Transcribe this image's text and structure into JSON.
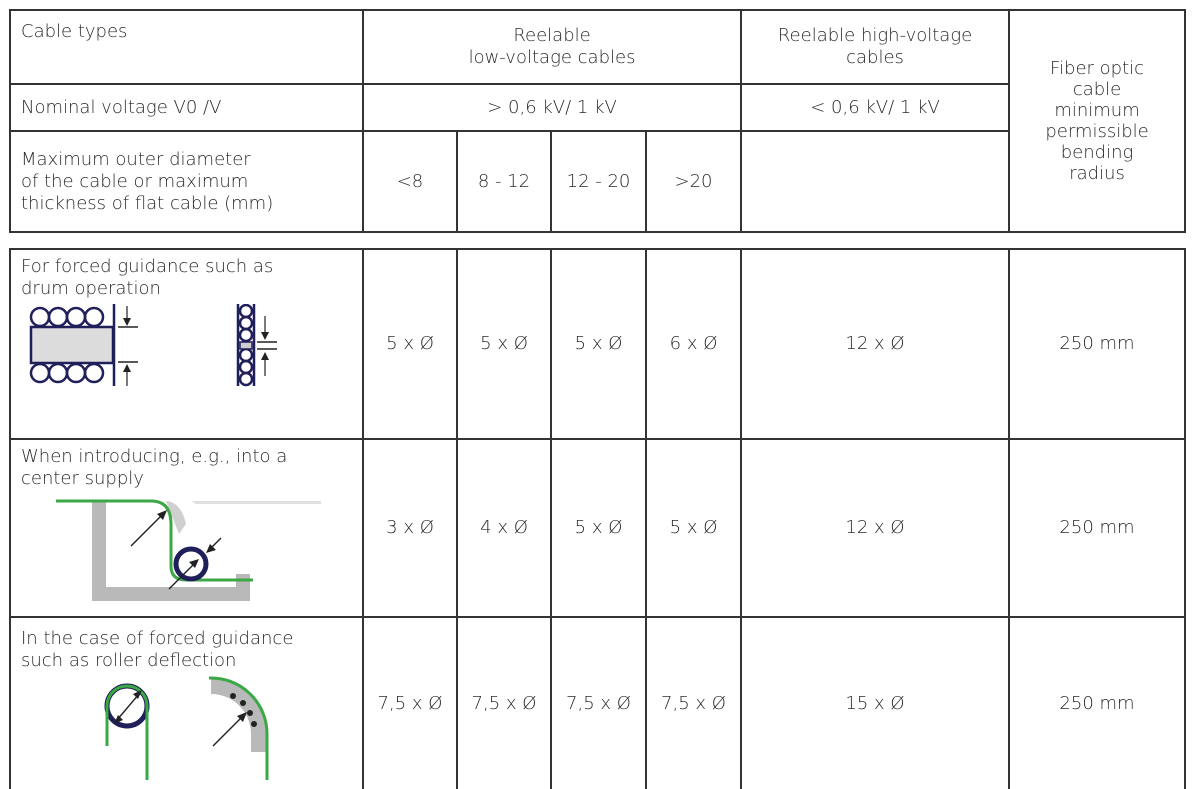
{
  "header": {
    "cable_types": "Cable types",
    "reelable_low": "Reelable\nlow-voltage cables",
    "reelable_high": "Reelable high-voltage\ncables",
    "fiber": "Fiber optic\ncable\nminimum\npermissible\nbending\nradius",
    "nominal_label": "Nominal voltage V0 /V",
    "nominal_low": "> 0,6 kV/ 1 kV",
    "nominal_high": "< 0,6 kV/ 1 kV",
    "diameter_label": "Maximum outer diameter\nof the cable or maximum\nthickness of flat cable (mm)",
    "diameter_cols": [
      "<8",
      "8 - 12",
      "12 - 20",
      ">20"
    ]
  },
  "rows": [
    {
      "label": "For forced guidance such as\ndrum operation",
      "values": [
        "5 x Ø",
        "5 x Ø",
        "5 x Ø",
        "6 x Ø"
      ],
      "high_voltage": "12 x Ø",
      "fiber": "250 mm",
      "icon": "drum-operation-illustration"
    },
    {
      "label": "When introducing, e.g., into a\ncenter supply",
      "values": [
        "3 x Ø",
        "4 x Ø",
        "5 x Ø",
        "5 x Ø"
      ],
      "high_voltage": "12 x Ø",
      "fiber": "250 mm",
      "icon": "center-supply-illustration"
    },
    {
      "label": "In the case of forced guidance\nsuch as roller deflection",
      "values": [
        "7,5 x Ø",
        "7,5 x Ø",
        "7,5 x Ø",
        "7,5 x Ø"
      ],
      "high_voltage": "15 x Ø",
      "fiber": "250 mm",
      "icon": "roller-deflection-illustration"
    }
  ],
  "colors": {
    "cable_green": "#3aa845",
    "line": "#333333",
    "channel_gray": "#b9b9b9",
    "fill_gray": "#dcdcdc"
  }
}
